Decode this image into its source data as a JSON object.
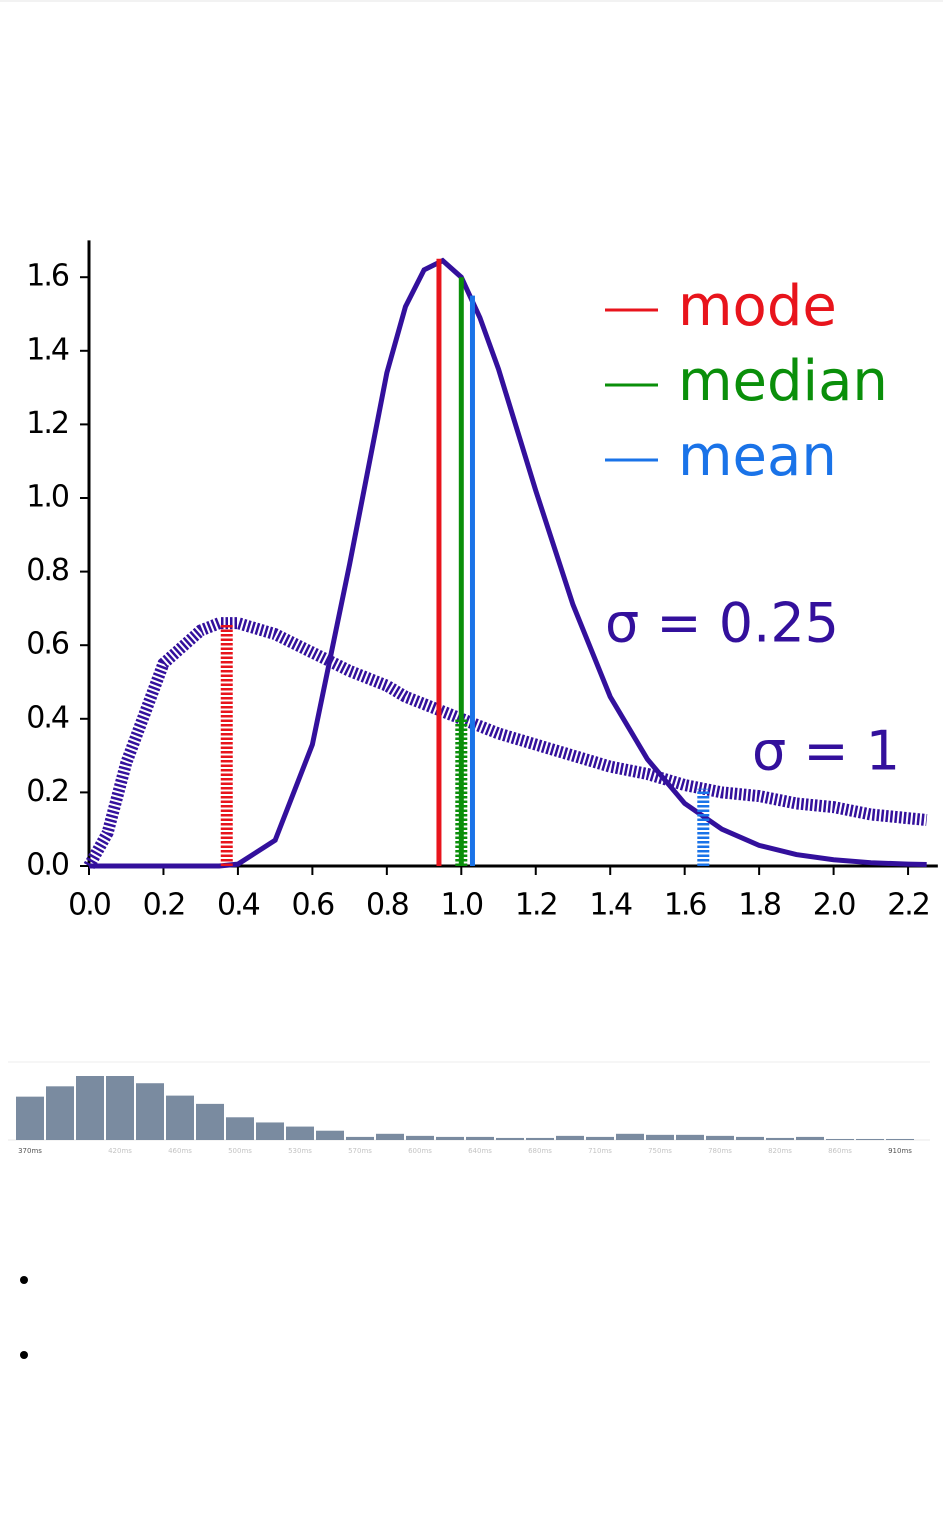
{
  "chart_data": [
    {
      "type": "line",
      "x": [
        0,
        0.05,
        0.1,
        0.2,
        0.3,
        0.35,
        0.4,
        0.5,
        0.6,
        0.7,
        0.8,
        0.85,
        0.9,
        0.95,
        1.0,
        1.05,
        1.1,
        1.2,
        1.3,
        1.4,
        1.5,
        1.6,
        1.7,
        1.8,
        1.9,
        2.0,
        2.1,
        2.2,
        2.25
      ],
      "series": [
        {
          "color": "#33109c",
          "style": "solid",
          "values": [
            0,
            0,
            0,
            0,
            0,
            0,
            0.005,
            0.07,
            0.33,
            0.82,
            1.34,
            1.52,
            1.62,
            1.645,
            1.6,
            1.49,
            1.35,
            1.02,
            0.71,
            0.46,
            0.29,
            0.17,
            0.1,
            0.056,
            0.031,
            0.017,
            0.009,
            0.005,
            0.004
          ]
        },
        {
          "color": "#33109c",
          "style": "dotted",
          "values": [
            0,
            0.09,
            0.28,
            0.55,
            0.64,
            0.66,
            0.66,
            0.63,
            0.58,
            0.53,
            0.49,
            0.46,
            0.44,
            0.42,
            0.4,
            0.38,
            0.36,
            0.33,
            0.3,
            0.27,
            0.25,
            0.22,
            0.2,
            0.19,
            0.17,
            0.16,
            0.14,
            0.13,
            0.125
          ]
        }
      ],
      "markers": [
        {
          "name": "mode",
          "color": "#e8141c",
          "x": [
            0.94,
            0.37
          ],
          "values": [
            1.65,
            0.66
          ]
        },
        {
          "name": "median",
          "color": "#0a8f0a",
          "x": [
            1.0,
            1.0
          ],
          "values": [
            1.6,
            0.4
          ]
        },
        {
          "name": "mean",
          "color": "#1a73e8",
          "x": [
            1.03,
            1.65
          ],
          "values": [
            1.55,
            0.21
          ]
        }
      ],
      "annotations": [
        "σ = 0.25",
        "σ = 1"
      ],
      "xlim": [
        0,
        2.28
      ],
      "ylim": [
        0,
        1.7
      ],
      "xticks": [
        {
          "value": 0,
          "label": "0.0"
        },
        {
          "value": 0.2,
          "label": "0.2"
        },
        {
          "value": 0.4,
          "label": "0.4"
        },
        {
          "value": 0.6,
          "label": "0.6"
        },
        {
          "value": 0.8,
          "label": "0.8"
        },
        {
          "value": 1,
          "label": "1.0"
        },
        {
          "value": 1.2,
          "label": "1.2"
        },
        {
          "value": 1.4,
          "label": "1.4"
        },
        {
          "value": 1.6,
          "label": "1.6"
        },
        {
          "value": 1.8,
          "label": "1.8"
        },
        {
          "value": 2,
          "label": "2.0"
        },
        {
          "value": 2.2,
          "label": "2.2"
        }
      ],
      "yticks": [
        {
          "value": 0,
          "label": "0.0"
        },
        {
          "value": 0.2,
          "label": "0.2"
        },
        {
          "value": 0.4,
          "label": "0.4"
        },
        {
          "value": 0.6,
          "label": "0.6"
        },
        {
          "value": 0.8,
          "label": "0.8"
        },
        {
          "value": 1,
          "label": "1.0"
        },
        {
          "value": 1.2,
          "label": "1.2"
        },
        {
          "value": 1.4,
          "label": "1.4"
        },
        {
          "value": 1.6,
          "label": "1.6"
        }
      ]
    },
    {
      "type": "bar",
      "color": "#7a8ba0",
      "categories": [
        "370ms",
        null,
        null,
        "420ms",
        null,
        "460ms",
        null,
        "500ms",
        null,
        "530ms",
        null,
        "570ms",
        null,
        "600ms",
        null,
        "640ms",
        null,
        "680ms",
        null,
        "710ms",
        null,
        "750ms",
        null,
        "780ms",
        null,
        "820ms",
        null,
        "860ms",
        null,
        "910ms"
      ],
      "values": [
        42,
        52,
        62,
        62,
        55,
        43,
        35,
        22,
        17,
        13,
        9,
        3,
        6,
        4,
        3,
        3,
        2,
        2,
        4,
        3,
        6,
        5,
        5,
        4,
        3,
        2,
        3,
        1,
        1,
        1
      ]
    }
  ]
}
